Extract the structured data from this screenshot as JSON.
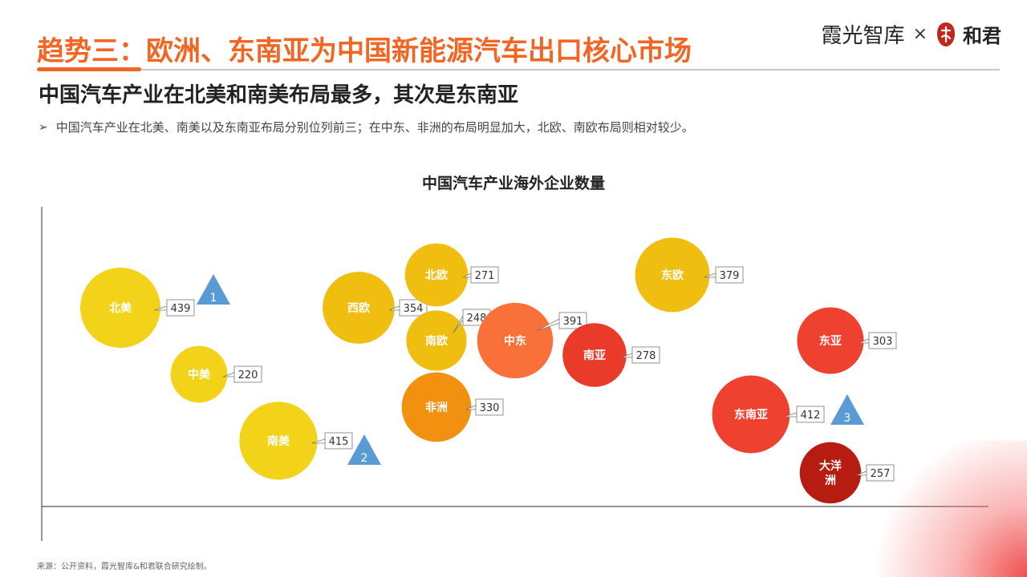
{
  "header": {
    "title": "趋势三：欧洲、东南亚为中国新能源汽车出口核心市场",
    "brand_left": "霞光智库",
    "brand_sep": "×",
    "brand_right": "和君"
  },
  "subtitle": "中国汽车产业在北美和南美布局最多，其次是东南亚",
  "bullet": {
    "mark": "➢",
    "text": "中国汽车产业在北美、南美以及东南亚布局分别位列前三；在中东、非洲的布局明显加大，北欧、南欧布局则相对较少。"
  },
  "source": "来源：公开资料，霞光智库&和君联合研究绘制。",
  "colors": {
    "title_orange": "#f26522",
    "rank_triangle": "#5b9bd5"
  },
  "chart_data": {
    "type": "bubble",
    "title": "中国汽车产业海外企业数量",
    "value_label_style": "callout box",
    "series": [
      {
        "region": "北美",
        "value": 439,
        "color": "#f2d31a",
        "rank": "1"
      },
      {
        "region": "中美",
        "value": 220,
        "color": "#f2d31a"
      },
      {
        "region": "南美",
        "value": 415,
        "color": "#f2d31a",
        "rank": "2"
      },
      {
        "region": "西欧",
        "value": 354,
        "color": "#f0be10"
      },
      {
        "region": "北欧",
        "value": 271,
        "color": "#f0be10"
      },
      {
        "region": "南欧",
        "value": 248,
        "color": "#f0be10"
      },
      {
        "region": "非洲",
        "value": 330,
        "color": "#f29110"
      },
      {
        "region": "中东",
        "value": 391,
        "color": "#f97138"
      },
      {
        "region": "南亚",
        "value": 278,
        "color": "#ea3a2a"
      },
      {
        "region": "东欧",
        "value": 379,
        "color": "#f0be10"
      },
      {
        "region": "东亚",
        "value": 303,
        "color": "#ef4130"
      },
      {
        "region": "东南亚",
        "value": 412,
        "color": "#ef4130",
        "rank": "3"
      },
      {
        "region": "大洋洲",
        "value": 257,
        "color": "#b71c10"
      }
    ]
  }
}
